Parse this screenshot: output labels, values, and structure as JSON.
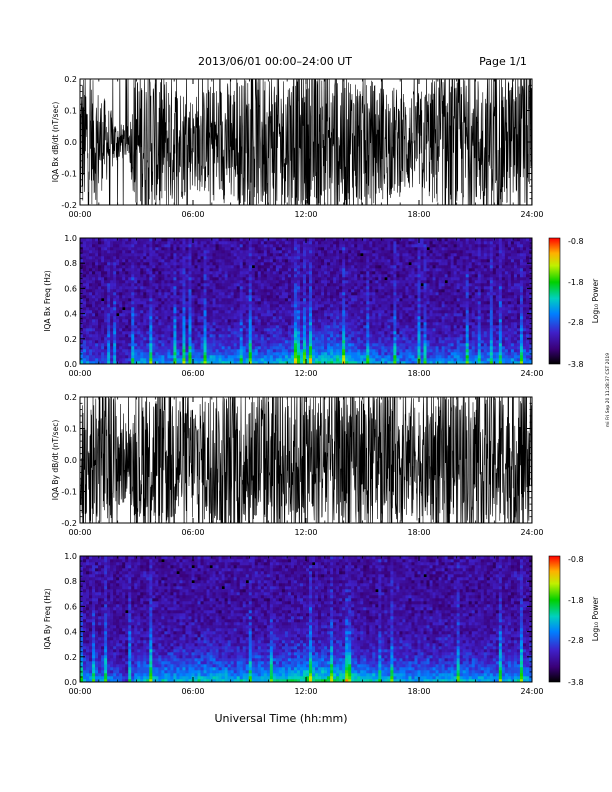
{
  "header": {
    "title": "2013/06/01   00:00–24:00 UT",
    "page": "Page 1/1"
  },
  "footer": {
    "xlabel": "Universal Time (hh:mm)"
  },
  "side_note": "mi Fri Sep 20 11:28:37 CST 2019",
  "colorbar": {
    "label": "Log₁₀ Power",
    "ticks": [
      "-0.8",
      "-1.8",
      "-2.8",
      "-3.8"
    ]
  },
  "colors": {
    "trace": "#000000",
    "spec_low": "#000000",
    "spec_mid": "#3a0ca0",
    "spec_high": "#ff0000"
  },
  "chart_data": [
    {
      "type": "line",
      "ylabel": "IQA Bx dB/dt (nT/sec)",
      "xlim": [
        "00:00",
        "24:00"
      ],
      "ylim": [
        -0.2,
        0.2
      ],
      "x_ticks": [
        "00:00",
        "06:00",
        "12:00",
        "18:00",
        "24:00"
      ],
      "y_ticks": [
        "-0.2",
        "-0.1",
        "0.0",
        "0.1",
        "0.2"
      ],
      "envelope_hours": [
        0,
        1,
        2,
        2.6,
        3,
        4,
        5,
        6,
        7,
        8,
        9,
        10,
        11,
        11.7,
        12,
        13,
        14,
        15,
        16,
        17,
        18,
        19,
        20,
        21,
        22,
        23,
        24
      ],
      "envelope_amplitude": [
        0.2,
        0.14,
        0.05,
        0.04,
        0.2,
        0.2,
        0.17,
        0.12,
        0.15,
        0.16,
        0.18,
        0.2,
        0.18,
        0.2,
        0.2,
        0.2,
        0.2,
        0.17,
        0.15,
        0.14,
        0.13,
        0.18,
        0.19,
        0.17,
        0.2,
        0.18,
        0.2
      ]
    },
    {
      "type": "heatmap",
      "ylabel": "IQA Bx Freq (Hz)",
      "xlim": [
        "00:00",
        "24:00"
      ],
      "ylim": [
        0.0,
        1.0
      ],
      "x_ticks": [
        "00:00",
        "06:00",
        "12:00",
        "18:00",
        "24:00"
      ],
      "y_ticks": [
        "0.0",
        "0.2",
        "0.4",
        "0.6",
        "0.8",
        "1.0"
      ],
      "zlabel": "Log₁₀ Power",
      "zlim": [
        -3.8,
        -0.8
      ]
    },
    {
      "type": "line",
      "ylabel": "IQA By dB/dt (nT/sec)",
      "xlim": [
        "00:00",
        "24:00"
      ],
      "ylim": [
        -0.2,
        0.2
      ],
      "x_ticks": [
        "00:00",
        "06:00",
        "12:00",
        "18:00",
        "24:00"
      ],
      "y_ticks": [
        "-0.2",
        "-0.1",
        "0.0",
        "0.1",
        "0.2"
      ],
      "envelope_hours": [
        0,
        1,
        2,
        2.6,
        3,
        4,
        5,
        6,
        7,
        8,
        9,
        10,
        11,
        11.7,
        12,
        13,
        14,
        15,
        16,
        17,
        18,
        19,
        20,
        21,
        22,
        23,
        24
      ],
      "envelope_amplitude": [
        0.2,
        0.2,
        0.18,
        0.07,
        0.2,
        0.2,
        0.2,
        0.17,
        0.18,
        0.2,
        0.2,
        0.2,
        0.2,
        0.2,
        0.2,
        0.2,
        0.2,
        0.2,
        0.18,
        0.17,
        0.16,
        0.18,
        0.2,
        0.18,
        0.2,
        0.19,
        0.2
      ]
    },
    {
      "type": "heatmap",
      "ylabel": "IQA By Freq (Hz)",
      "xlim": [
        "00:00",
        "24:00"
      ],
      "ylim": [
        0.0,
        1.0
      ],
      "x_ticks": [
        "00:00",
        "06:00",
        "12:00",
        "18:00",
        "24:00"
      ],
      "y_ticks": [
        "0.0",
        "0.2",
        "0.4",
        "0.6",
        "0.8",
        "1.0"
      ],
      "zlabel": "Log₁₀ Power",
      "zlim": [
        -3.8,
        -0.8
      ]
    }
  ]
}
